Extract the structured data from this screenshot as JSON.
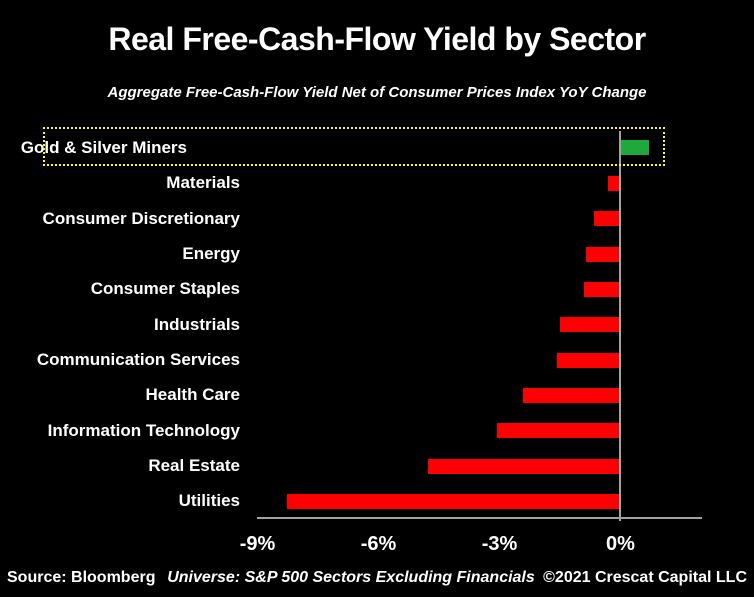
{
  "chart_data": {
    "type": "bar",
    "orientation": "horizontal",
    "title": "Real Free-Cash-Flow Yield by Sector",
    "subtitle": "Aggregate Free-Cash-Flow Yield Net of Consumer Prices Index YoY Change",
    "categories": [
      "Gold & Silver Miners",
      "Materials",
      "Consumer Discretionary",
      "Energy",
      "Consumer Staples",
      "Industrials",
      "Communication Services",
      "Health Care",
      "Information Technology",
      "Real Estate",
      "Utilities"
    ],
    "values": [
      0.7,
      -0.3,
      -0.65,
      -0.85,
      -0.9,
      -1.5,
      -1.55,
      -2.4,
      -3.05,
      -4.75,
      -8.25
    ],
    "unit": "%",
    "x_ticks": [
      {
        "label": "-9%",
        "value": -9
      },
      {
        "label": "-6%",
        "value": -6
      },
      {
        "label": "-3%",
        "value": -3
      },
      {
        "label": "0%",
        "value": 0
      }
    ],
    "xlim": [
      -9,
      2
    ],
    "grid": false,
    "legend": false,
    "highlight_category": "Gold & Silver Miners",
    "colors": {
      "positive_bar": "#1fa83e",
      "negative_bar": "#ff0000",
      "highlight_box": "#ffff00",
      "axis": "#a3a3a3",
      "text": "#ffffff",
      "background": "#000000"
    }
  },
  "footer": {
    "source": "Source: Bloomberg",
    "universe": "Universe: S&P 500 Sectors Excluding Financials",
    "copyright": "©2021 Crescat Capital LLC"
  }
}
